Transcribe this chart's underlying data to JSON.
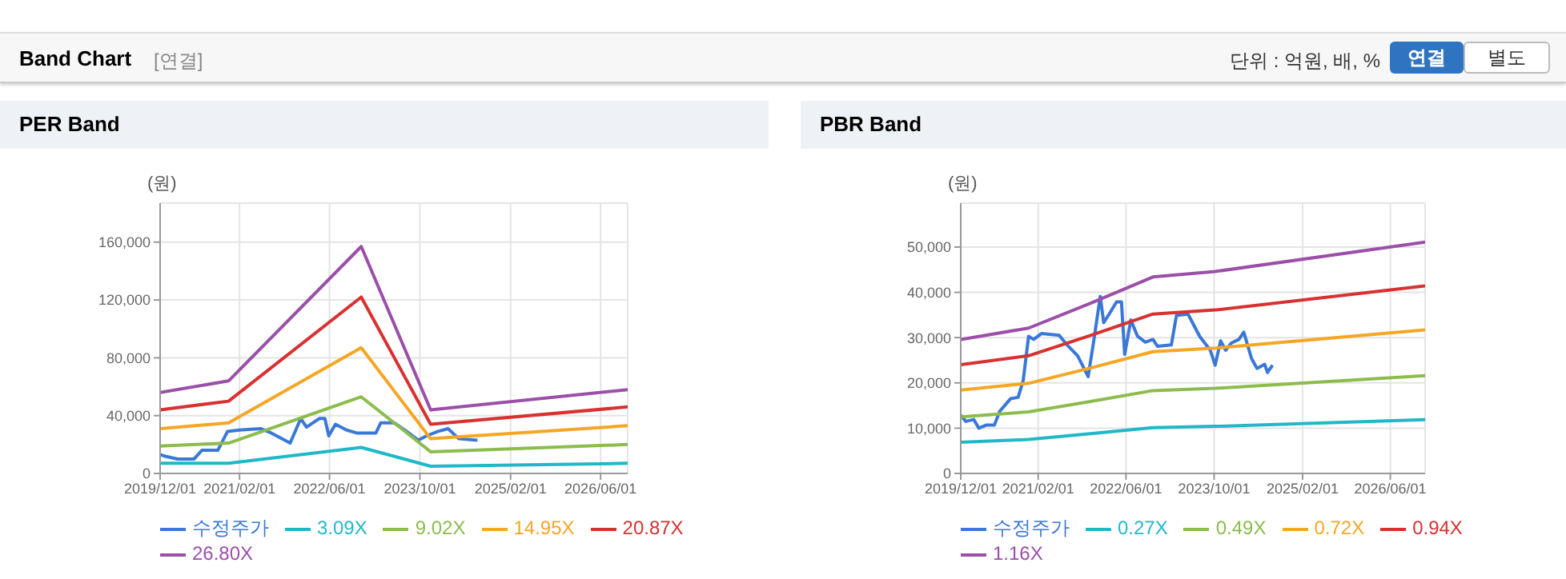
{
  "chart_data": [
    {
      "type": "other",
      "title": "Band Chart",
      "annotations": [
        "[연결]",
        "단위 : 억원, 배, %",
        "연결",
        "별도"
      ]
    },
    {
      "type": "line",
      "title": "PER Band",
      "ylabel": "(원)",
      "legend": "bottom",
      "grid": true,
      "marker": "none",
      "line_style": "solid",
      "xlim": [
        "2019-12-01",
        "2026-10-25"
      ],
      "ylim": [
        0,
        187000
      ],
      "xticks": [
        {
          "value": "2019-12-01",
          "label": "2019/12/01"
        },
        {
          "value": "2021-02-01",
          "label": "2021/02/01"
        },
        {
          "value": "2022-06-01",
          "label": "2022/06/01"
        },
        {
          "value": "2023-10-01",
          "label": "2023/10/01"
        },
        {
          "value": "2025-02-01",
          "label": "2025/02/01"
        },
        {
          "value": "2026-06-01",
          "label": "2026/06/01"
        }
      ],
      "yticks": [
        {
          "value": 0,
          "label": "0"
        },
        {
          "value": 40000,
          "label": "40,000"
        },
        {
          "value": 80000,
          "label": "80,000"
        },
        {
          "value": 120000,
          "label": "120,000"
        },
        {
          "value": 160000,
          "label": "160,000"
        }
      ],
      "x": [
        "2019-12-01",
        "2020-12-04",
        "2022-11-19",
        "2023-11-28",
        "2026-10-25"
      ],
      "series": [
        {
          "name": "수정주가",
          "color": "#3a78d8",
          "x": [
            "2019-12-01",
            "2019-12-24",
            "2020-03-04",
            "2020-06-01",
            "2020-07-13",
            "2020-10-07",
            "2020-11-28",
            "2021-02-01",
            "2021-05-25",
            "2021-07-22",
            "2021-11-01",
            "2021-12-28",
            "2022-01-28",
            "2022-04-07",
            "2022-05-07",
            "2022-05-28",
            "2022-07-03",
            "2022-09-01",
            "2022-10-25",
            "2023-02-06",
            "2023-03-04",
            "2023-05-16",
            "2023-07-12",
            "2023-09-22",
            "2023-11-06",
            "2024-01-04",
            "2024-03-01",
            "2024-04-28",
            "2024-08-06"
          ],
          "values": [
            13000,
            12000,
            10000,
            10000,
            16000,
            16000,
            29000,
            30000,
            31000,
            28000,
            21000,
            38000,
            32000,
            38000,
            38000,
            26000,
            34000,
            30000,
            28000,
            28000,
            35000,
            35000,
            30000,
            23000,
            26000,
            29000,
            31000,
            24000,
            23000
          ]
        },
        {
          "name": "3.09X",
          "color": "#20b8c8",
          "values": [
            7000,
            7000,
            18000,
            5000,
            7000
          ]
        },
        {
          "name": "9.02X",
          "color": "#8cbc4c",
          "values": [
            19000,
            21000,
            53000,
            15000,
            20000
          ]
        },
        {
          "name": "14.95X",
          "color": "#f5a623",
          "values": [
            31000,
            35000,
            87000,
            24000,
            33000
          ]
        },
        {
          "name": "20.87X",
          "color": "#d93030",
          "values": [
            44000,
            50000,
            122000,
            34000,
            46000
          ]
        },
        {
          "name": "26.80X",
          "color": "#9b4fa8",
          "values": [
            56000,
            64000,
            157000,
            44000,
            58000
          ]
        }
      ]
    },
    {
      "type": "line",
      "title": "PBR Band",
      "ylabel": "(원)",
      "legend": "bottom",
      "grid": true,
      "marker": "none",
      "line_style": "solid",
      "xlim": [
        "2019-12-01",
        "2026-12-10"
      ],
      "ylim": [
        0,
        59700
      ],
      "xticks": [
        {
          "value": "2019-12-01",
          "label": "2019/12/01"
        },
        {
          "value": "2021-02-01",
          "label": "2021/02/01"
        },
        {
          "value": "2022-06-01",
          "label": "2022/06/01"
        },
        {
          "value": "2023-10-01",
          "label": "2023/10/01"
        },
        {
          "value": "2025-02-01",
          "label": "2025/02/01"
        },
        {
          "value": "2026-06-01",
          "label": "2026/06/01"
        }
      ],
      "yticks": [
        {
          "value": 0,
          "label": "0"
        },
        {
          "value": 10000,
          "label": "10,000"
        },
        {
          "value": 20000,
          "label": "20,000"
        },
        {
          "value": 30000,
          "label": "30,000"
        },
        {
          "value": 40000,
          "label": "40,000"
        },
        {
          "value": 50000,
          "label": "50,000"
        }
      ],
      "x": [
        "2019-12-01",
        "2020-12-10",
        "2021-11-18",
        "2022-10-28",
        "2023-10-07",
        "2026-12-10"
      ],
      "series": [
        {
          "name": "수정주가",
          "color": "#3a78d8",
          "x": [
            "2019-12-01",
            "2019-12-29",
            "2020-02-11",
            "2020-03-10",
            "2020-04-22",
            "2020-06-04",
            "2020-07-03",
            "2020-09-01",
            "2020-10-13",
            "2020-11-10",
            "2020-12-10",
            "2021-01-07",
            "2021-02-19",
            "2021-05-28",
            "2021-07-10",
            "2021-09-07",
            "2021-11-04",
            "2021-12-04",
            "2022-01-10",
            "2022-01-29",
            "2022-02-28",
            "2022-04-10",
            "2022-05-07",
            "2022-05-25",
            "2022-06-28",
            "2022-08-04",
            "2022-09-16",
            "2022-10-28",
            "2022-11-22",
            "2023-02-07",
            "2023-03-07",
            "2023-05-10",
            "2023-07-13",
            "2023-09-10",
            "2023-10-07",
            "2023-11-06",
            "2023-12-04",
            "2024-01-04",
            "2024-02-15",
            "2024-03-13",
            "2024-04-25",
            "2024-05-25",
            "2024-07-07",
            "2024-07-22",
            "2024-08-19"
          ],
          "values": [
            12900,
            11500,
            11900,
            10000,
            10700,
            10700,
            13700,
            16500,
            16800,
            20500,
            30300,
            29600,
            30900,
            30500,
            28400,
            26000,
            21400,
            29000,
            39100,
            33300,
            35200,
            37900,
            37900,
            26300,
            33900,
            30300,
            29000,
            29600,
            28100,
            28400,
            34900,
            35200,
            30300,
            27200,
            23900,
            29300,
            27200,
            28800,
            29600,
            31200,
            25400,
            23200,
            24100,
            22300,
            23900
          ]
        },
        {
          "name": "0.27X",
          "color": "#20b8c8",
          "values": [
            6900,
            7500,
            8800,
            10100,
            10400,
            11900
          ]
        },
        {
          "name": "0.49X",
          "color": "#8cbc4c",
          "values": [
            12500,
            13600,
            15900,
            18300,
            18800,
            21600
          ]
        },
        {
          "name": "0.72X",
          "color": "#f5a623",
          "values": [
            18400,
            19900,
            23300,
            26900,
            27700,
            31700
          ]
        },
        {
          "name": "0.94X",
          "color": "#d93030",
          "values": [
            24000,
            26000,
            30500,
            35200,
            36100,
            41400
          ]
        },
        {
          "name": "1.16X",
          "color": "#9b4fa8",
          "values": [
            29600,
            32100,
            37600,
            43400,
            44600,
            51100
          ]
        }
      ]
    }
  ]
}
